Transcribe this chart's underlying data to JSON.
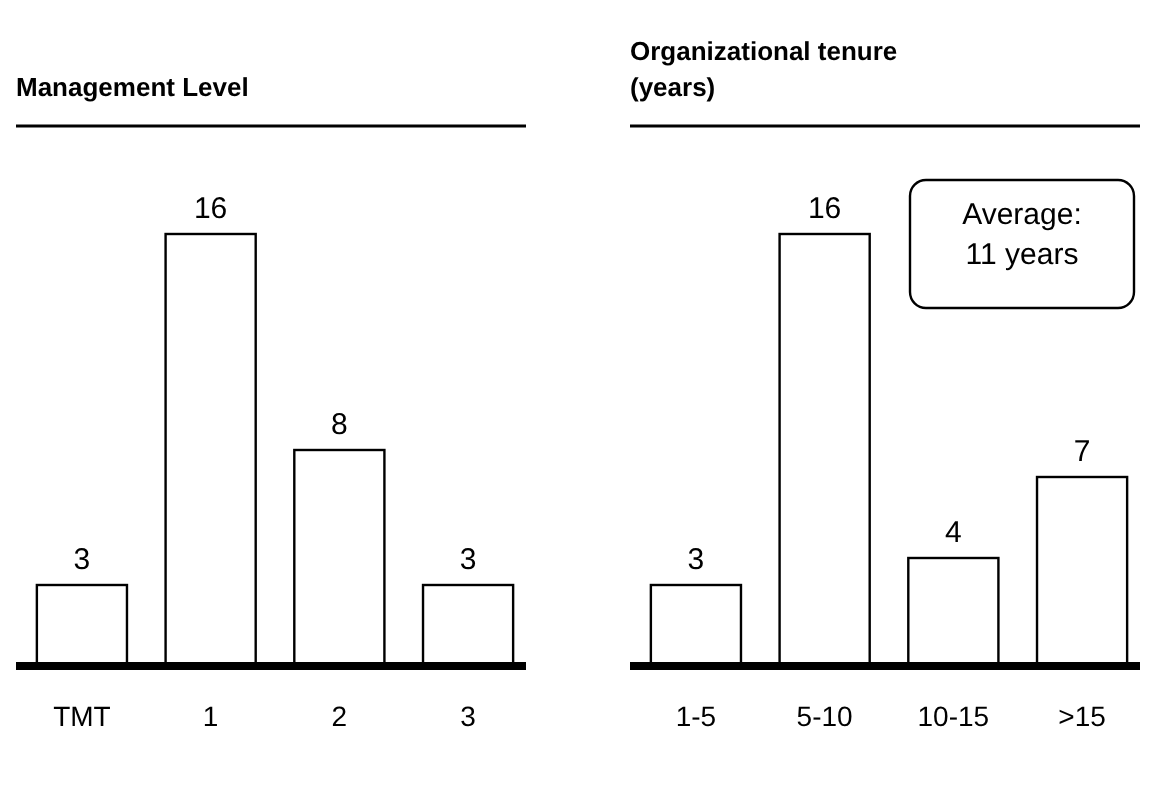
{
  "chart_data": [
    {
      "type": "bar",
      "title": "Management Level",
      "categories": [
        "TMT",
        "1",
        "2",
        "3"
      ],
      "values": [
        3,
        16,
        8,
        3
      ],
      "color": "#ffffff",
      "data_labels": true
    },
    {
      "type": "bar",
      "title": "Organizational tenure (years)",
      "categories": [
        "1-5",
        "5-10",
        "10-15",
        ">15"
      ],
      "values": [
        3,
        16,
        4,
        7
      ],
      "color": "#ffffff",
      "data_labels": true,
      "annotations": [
        "Average: 11 years"
      ]
    }
  ]
}
